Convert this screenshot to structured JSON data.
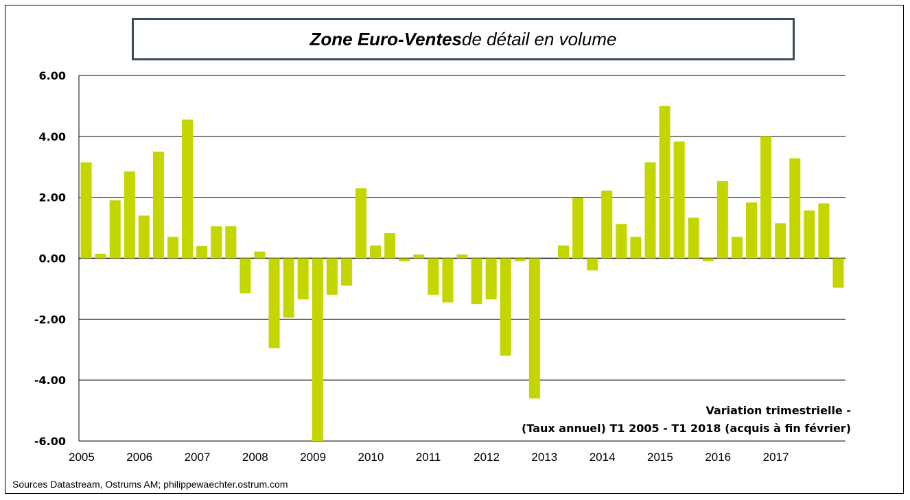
{
  "title": {
    "part1": "Zone Euro",
    "part2": " - ",
    "part3": "Ventes",
    "part4": " de détail en volume"
  },
  "source": "Sources Datastream, Ostrums AM; philippewaechter.ostrum.com",
  "colors": {
    "bar": "#c4d600",
    "frame": "#3b4a5e",
    "grid": "#000000"
  },
  "chart_data": {
    "type": "bar",
    "title": "Zone Euro - Ventes de détail en volume",
    "xlabel": "",
    "ylabel": "",
    "ylim": [
      -6,
      6
    ],
    "grid": true,
    "y_ticks": [
      "6.00",
      "4.00",
      "2.00",
      "0.00",
      "-2.00",
      "-4.00",
      "-6.00"
    ],
    "year_labels": [
      "2005",
      "2006",
      "2007",
      "2008",
      "2009",
      "2010",
      "2011",
      "2012",
      "2013",
      "2014",
      "2015",
      "2016",
      "2017"
    ],
    "annotation": [
      "Variation trimestrielle -",
      "(Taux annuel) T1 2005 -  T1 2018 (acquis à fin février)"
    ],
    "categories": [
      "2005 T1",
      "2005 T2",
      "2005 T3",
      "2005 T4",
      "2006 T1",
      "2006 T2",
      "2006 T3",
      "2006 T4",
      "2007 T1",
      "2007 T2",
      "2007 T3",
      "2007 T4",
      "2008 T1",
      "2008 T2",
      "2008 T3",
      "2008 T4",
      "2009 T1",
      "2009 T2",
      "2009 T3",
      "2009 T4",
      "2010 T1",
      "2010 T2",
      "2010 T3",
      "2010 T4",
      "2011 T1",
      "2011 T2",
      "2011 T3",
      "2011 T4",
      "2012 T1",
      "2012 T2",
      "2012 T3",
      "2012 T4",
      "2013 T1",
      "2013 T2",
      "2013 T3",
      "2013 T4",
      "2014 T1",
      "2014 T2",
      "2014 T3",
      "2014 T4",
      "2015 T1",
      "2015 T2",
      "2015 T3",
      "2015 T4",
      "2016 T1",
      "2016 T2",
      "2016 T3",
      "2016 T4",
      "2017 T1",
      "2017 T2",
      "2017 T3",
      "2017 T4",
      "2018 T1"
    ],
    "values": [
      3.15,
      0.15,
      1.9,
      2.85,
      1.4,
      3.5,
      0.7,
      4.55,
      0.4,
      1.05,
      1.05,
      -1.15,
      0.22,
      -2.95,
      -1.95,
      -1.35,
      -6.0,
      -1.2,
      -0.9,
      2.3,
      0.42,
      0.82,
      -0.1,
      0.12,
      -1.2,
      -1.45,
      0.12,
      -1.5,
      -1.35,
      -3.2,
      -0.1,
      -4.6,
      0.0,
      0.42,
      1.98,
      -0.4,
      2.22,
      1.12,
      0.7,
      3.15,
      5.0,
      3.83,
      1.33,
      -0.1,
      2.53,
      0.7,
      1.83,
      4.0,
      1.15,
      3.28,
      1.57,
      1.8,
      -0.97
    ]
  }
}
